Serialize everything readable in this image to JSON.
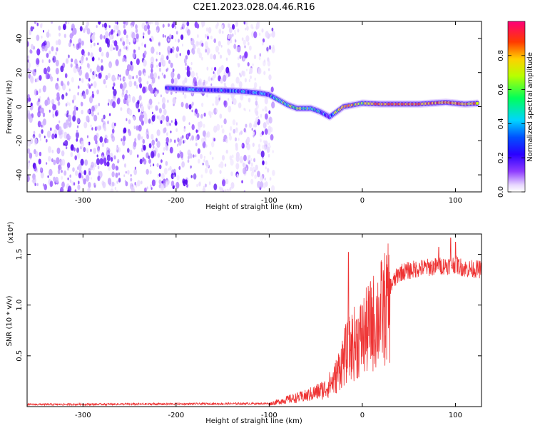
{
  "title": "C2E1.2023.028.04.46.R16",
  "chart_data": [
    {
      "type": "heatmap",
      "xlabel": "Height of straight line (km)",
      "ylabel": "Frequency (Hz)",
      "xlim": [
        -360,
        128
      ],
      "ylim": [
        -50,
        50
      ],
      "xticks": [
        -300,
        -200,
        -100,
        0,
        100
      ],
      "yticks": [
        -40,
        -20,
        0,
        20,
        40
      ],
      "colorbar": {
        "label": "Normalized spectral amplitude",
        "range": [
          0,
          1
        ],
        "ticks": [
          0.0,
          0.2,
          0.4,
          0.6,
          0.8
        ],
        "colors": [
          "#ffffff",
          "#cc99ff",
          "#6a00ff",
          "#0000ff",
          "#00ccff",
          "#00ff66",
          "#ccff00",
          "#ffcc00",
          "#ff3300",
          "#ff0077"
        ]
      },
      "noise_region_x": [
        -360,
        -100
      ],
      "ridge": [
        {
          "x": -210,
          "y": 11,
          "a": 0.35
        },
        {
          "x": -180,
          "y": 10,
          "a": 0.4
        },
        {
          "x": -150,
          "y": 9.5,
          "a": 0.35
        },
        {
          "x": -130,
          "y": 9,
          "a": 0.42
        },
        {
          "x": -110,
          "y": 8,
          "a": 0.4
        },
        {
          "x": -100,
          "y": 7,
          "a": 0.45
        },
        {
          "x": -90,
          "y": 4,
          "a": 0.55
        },
        {
          "x": -80,
          "y": 1,
          "a": 0.6
        },
        {
          "x": -70,
          "y": -1,
          "a": 0.65
        },
        {
          "x": -55,
          "y": -1,
          "a": 0.6
        },
        {
          "x": -45,
          "y": -3,
          "a": 0.45
        },
        {
          "x": -35,
          "y": -6,
          "a": 0.35
        },
        {
          "x": -20,
          "y": 0,
          "a": 0.9
        },
        {
          "x": 0,
          "y": 2,
          "a": 0.7
        },
        {
          "x": 20,
          "y": 1.5,
          "a": 0.9
        },
        {
          "x": 40,
          "y": 1.5,
          "a": 0.92
        },
        {
          "x": 60,
          "y": 1.5,
          "a": 0.9
        },
        {
          "x": 90,
          "y": 2.5,
          "a": 0.85
        },
        {
          "x": 110,
          "y": 1.5,
          "a": 0.92
        },
        {
          "x": 125,
          "y": 2,
          "a": 0.8
        }
      ]
    },
    {
      "type": "line",
      "xlabel": "Height of straight line (km)",
      "ylabel": "SNR (10 * v/v)",
      "multiplier": "(x10⁴)",
      "xlim": [
        -360,
        128
      ],
      "ylim": [
        0,
        1.7
      ],
      "xticks": [
        -300,
        -200,
        -100,
        0,
        100
      ],
      "yticks": [
        0.5,
        1.0,
        1.5
      ],
      "color": "#ee3333",
      "envelope": {
        "x": [
          -360,
          -100,
          -80,
          -60,
          -40,
          -30,
          -20,
          -10,
          0,
          10,
          20,
          30,
          40,
          60,
          80,
          100,
          110,
          128
        ],
        "y": [
          0.02,
          0.03,
          0.08,
          0.12,
          0.2,
          0.3,
          0.55,
          0.7,
          0.78,
          0.92,
          1.05,
          1.18,
          1.32,
          1.36,
          1.38,
          1.4,
          1.36,
          1.35
        ]
      },
      "spikes": [
        {
          "x": -15,
          "y": 1.52
        },
        {
          "x": 95,
          "y": 1.66
        },
        {
          "x": 100,
          "y": 1.62
        },
        {
          "x": 82,
          "y": 1.57
        }
      ]
    }
  ]
}
